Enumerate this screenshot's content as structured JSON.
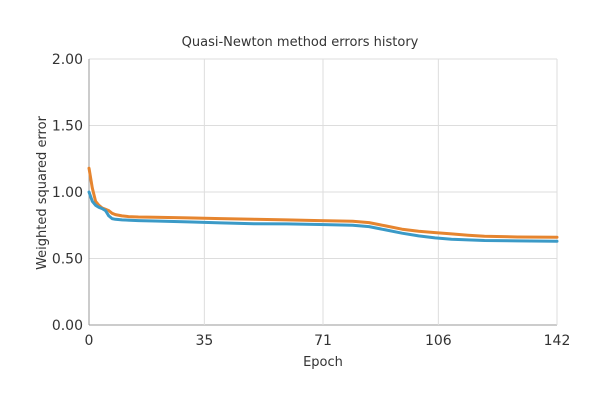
{
  "chart_data": {
    "type": "line",
    "title": "Quasi-Newton method errors history",
    "xlabel": "Epoch",
    "ylabel": "Weighted squared error",
    "xlim": [
      0,
      142
    ],
    "ylim": [
      0,
      2
    ],
    "x_ticks": [
      0,
      35,
      71,
      106,
      142
    ],
    "y_ticks": [
      "0.00",
      "0.50",
      "1.00",
      "1.50",
      "2.00"
    ],
    "grid": true,
    "legend": "none",
    "series": [
      {
        "color": "#e6852f",
        "points": [
          [
            0,
            1.18
          ],
          [
            1,
            1.03
          ],
          [
            2,
            0.93
          ],
          [
            3,
            0.9
          ],
          [
            4,
            0.88
          ],
          [
            5,
            0.87
          ],
          [
            6,
            0.86
          ],
          [
            7,
            0.84
          ],
          [
            8,
            0.83
          ],
          [
            10,
            0.82
          ],
          [
            12,
            0.815
          ],
          [
            15,
            0.812
          ],
          [
            20,
            0.81
          ],
          [
            30,
            0.805
          ],
          [
            40,
            0.8
          ],
          [
            50,
            0.795
          ],
          [
            60,
            0.79
          ],
          [
            70,
            0.785
          ],
          [
            80,
            0.78
          ],
          [
            85,
            0.77
          ],
          [
            90,
            0.745
          ],
          [
            95,
            0.72
          ],
          [
            100,
            0.705
          ],
          [
            105,
            0.695
          ],
          [
            110,
            0.685
          ],
          [
            115,
            0.675
          ],
          [
            120,
            0.668
          ],
          [
            130,
            0.662
          ],
          [
            142,
            0.66
          ]
        ]
      },
      {
        "color": "#3b9ac7",
        "points": [
          [
            0,
            1.0
          ],
          [
            1,
            0.93
          ],
          [
            2,
            0.9
          ],
          [
            3,
            0.885
          ],
          [
            4,
            0.875
          ],
          [
            5,
            0.86
          ],
          [
            6,
            0.82
          ],
          [
            7,
            0.8
          ],
          [
            8,
            0.795
          ],
          [
            10,
            0.79
          ],
          [
            15,
            0.785
          ],
          [
            20,
            0.782
          ],
          [
            30,
            0.775
          ],
          [
            40,
            0.768
          ],
          [
            50,
            0.762
          ],
          [
            60,
            0.76
          ],
          [
            70,
            0.756
          ],
          [
            80,
            0.75
          ],
          [
            85,
            0.74
          ],
          [
            90,
            0.715
          ],
          [
            95,
            0.69
          ],
          [
            100,
            0.67
          ],
          [
            105,
            0.655
          ],
          [
            110,
            0.645
          ],
          [
            115,
            0.64
          ],
          [
            120,
            0.635
          ],
          [
            130,
            0.632
          ],
          [
            142,
            0.63
          ]
        ]
      }
    ]
  }
}
